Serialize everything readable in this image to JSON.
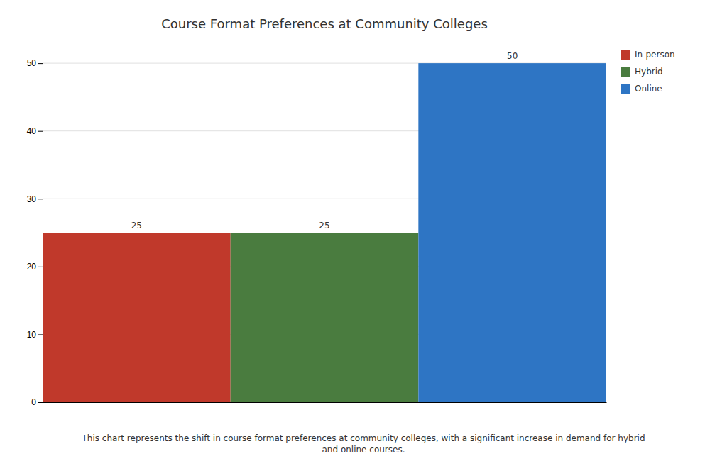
{
  "chart_data": {
    "type": "bar",
    "title": "Course Format Preferences at Community Colleges",
    "categories": [
      "In-person",
      "Hybrid",
      "Online"
    ],
    "values": [
      25,
      25,
      50
    ],
    "colors": [
      "#c0392b",
      "#4a7c3f",
      "#2e75c4"
    ],
    "ylim": [
      0,
      52
    ],
    "yticks": [
      0,
      10,
      20,
      30,
      40,
      50
    ],
    "grid": true,
    "legend": "right",
    "data_labels": true,
    "tick_labels": "y",
    "annotations": [
      "This chart represents the shift in course format preferences at community colleges, with a significant increase in demand for hybrid\nand online courses."
    ]
  }
}
